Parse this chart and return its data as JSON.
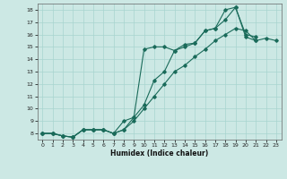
{
  "xlabel": "Humidex (Indice chaleur)",
  "background_color": "#cce8e4",
  "grid_color": "#a8d4cf",
  "line_color": "#1a6b5a",
  "xlim": [
    -0.5,
    23.5
  ],
  "ylim": [
    7.5,
    18.5
  ],
  "xticks": [
    0,
    1,
    2,
    3,
    4,
    5,
    6,
    7,
    8,
    9,
    10,
    11,
    12,
    13,
    14,
    15,
    16,
    17,
    18,
    19,
    20,
    21,
    22,
    23
  ],
  "yticks": [
    8,
    9,
    10,
    11,
    12,
    13,
    14,
    15,
    16,
    17,
    18
  ],
  "line1_x": [
    0,
    1,
    2,
    3,
    4,
    5,
    6,
    7,
    8,
    9,
    10,
    11,
    12,
    13,
    14,
    15,
    16,
    17,
    18,
    19,
    20,
    21
  ],
  "line1_y": [
    8.0,
    8.0,
    7.8,
    7.7,
    8.3,
    8.3,
    8.3,
    8.0,
    9.0,
    9.3,
    14.8,
    15.0,
    15.0,
    14.7,
    15.2,
    15.3,
    16.3,
    16.5,
    18.0,
    18.2,
    15.8,
    15.5
  ],
  "line2_x": [
    0,
    1,
    2,
    3,
    4,
    5,
    6,
    7,
    8,
    9,
    10,
    11,
    12,
    13,
    14,
    15,
    16,
    17,
    18,
    19,
    20,
    21
  ],
  "line2_y": [
    8.0,
    8.0,
    7.8,
    7.7,
    8.3,
    8.3,
    8.3,
    8.0,
    8.3,
    9.3,
    10.3,
    12.3,
    13.0,
    14.7,
    15.0,
    15.3,
    16.3,
    16.5,
    17.2,
    18.2,
    16.0,
    15.8
  ],
  "line3_x": [
    0,
    1,
    2,
    3,
    4,
    5,
    6,
    7,
    8,
    9,
    10,
    11,
    12,
    13,
    14,
    15,
    16,
    17,
    18,
    19,
    20,
    21,
    22,
    23
  ],
  "line3_y": [
    8.0,
    8.0,
    7.8,
    7.7,
    8.3,
    8.3,
    8.3,
    8.0,
    8.3,
    9.0,
    10.0,
    11.0,
    12.0,
    13.0,
    13.5,
    14.2,
    14.8,
    15.5,
    16.0,
    16.5,
    16.3,
    15.5,
    15.7,
    15.5
  ]
}
